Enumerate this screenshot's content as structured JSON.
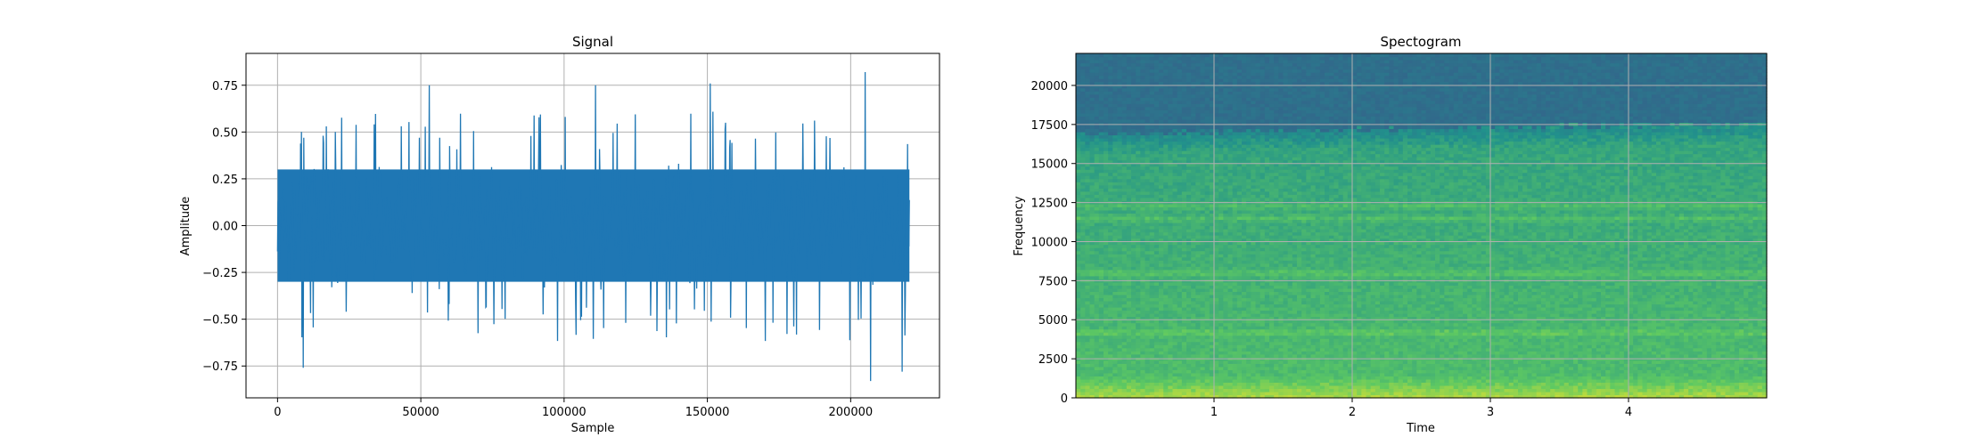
{
  "chart_data": [
    {
      "type": "line",
      "title": "Signal",
      "xlabel": "Sample",
      "ylabel": "Amplitude",
      "xlim": [
        -11000,
        231000
      ],
      "ylim": [
        -0.92,
        0.92
      ],
      "xticks": [
        0,
        50000,
        100000,
        150000,
        200000
      ],
      "xtick_labels": [
        "0",
        "50000",
        "100000",
        "150000",
        "200000"
      ],
      "yticks": [
        -0.75,
        -0.5,
        -0.25,
        0.0,
        0.25,
        0.5,
        0.75
      ],
      "ytick_labels": [
        "−0.75",
        "−0.50",
        "−0.25",
        "0.00",
        "0.25",
        "0.50",
        "0.75"
      ],
      "grid": true,
      "series": [
        {
          "color": "#1f77b4",
          "x_range": [
            0,
            220500
          ],
          "typical_envelope": [
            -0.35,
            0.35
          ],
          "peak_max": 0.82,
          "peak_min": -0.83,
          "notable_peaks": [
            {
              "x": 53000,
              "y": 0.75
            },
            {
              "x": 111000,
              "y": 0.75
            },
            {
              "x": 151000,
              "y": 0.76
            },
            {
              "x": 205000,
              "y": 0.82
            },
            {
              "x": 9000,
              "y": -0.76
            },
            {
              "x": 207000,
              "y": -0.83
            },
            {
              "x": 218000,
              "y": -0.78
            }
          ]
        }
      ]
    },
    {
      "type": "heatmap",
      "title": "Spectogram",
      "xlabel": "Time",
      "ylabel": "Frequency",
      "xlim": [
        0,
        5.0
      ],
      "ylim": [
        0,
        22050
      ],
      "xticks": [
        1,
        2,
        3,
        4
      ],
      "xtick_labels": [
        "1",
        "2",
        "3",
        "4"
      ],
      "yticks": [
        0,
        2500,
        5000,
        7500,
        10000,
        12500,
        15000,
        17500,
        20000
      ],
      "ytick_labels": [
        "0",
        "2500",
        "5000",
        "7500",
        "10000",
        "12500",
        "15000",
        "17500",
        "20000"
      ],
      "grid": true,
      "colormap": "viridis",
      "cutoff_frequency": 16500,
      "bright_bands_hz": [
        4200,
        8000,
        11500,
        12300,
        17500
      ]
    }
  ]
}
